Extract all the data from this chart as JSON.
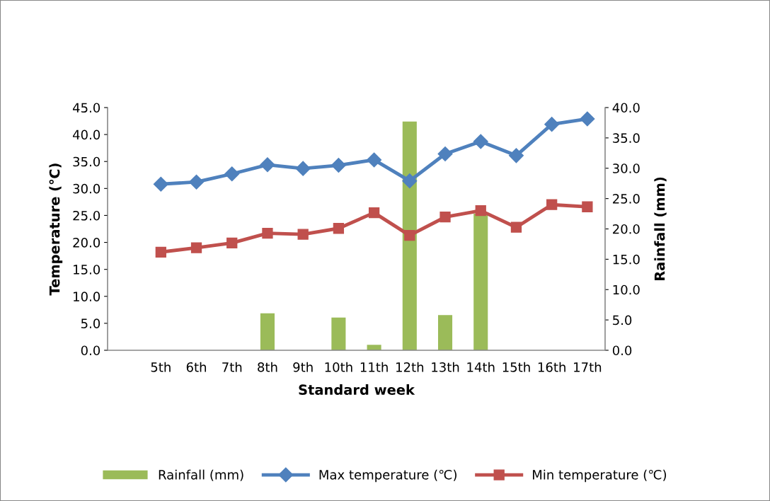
{
  "chart_data": {
    "type": "line",
    "xlabel": "Standard week",
    "ylabel": "Temperature (℃)",
    "y2label": "Rainfall (mm)",
    "categories": [
      "5th",
      "6th",
      "7th",
      "8th",
      "9th",
      "10th",
      "11th",
      "12th",
      "13th",
      "14th",
      "15th",
      "16th",
      "17th"
    ],
    "series": [
      {
        "name": "Rainfall (mm)",
        "type": "bar",
        "axis": "y2",
        "color": "#9bbb59",
        "values": [
          0,
          0,
          0,
          6.1,
          0,
          5.4,
          0.9,
          37.7,
          5.8,
          22.5,
          0,
          0,
          0
        ]
      },
      {
        "name": "Max temperature (℃)",
        "marker": "diamond",
        "color": "#4f81bd",
        "values": [
          30.8,
          31.2,
          32.7,
          34.4,
          33.7,
          34.3,
          35.3,
          31.4,
          36.4,
          38.7,
          36.1,
          41.9,
          42.9
        ]
      },
      {
        "name": "Min temperature (℃)",
        "marker": "square",
        "color": "#c0504d",
        "values": [
          18.2,
          19.0,
          19.9,
          21.7,
          21.5,
          22.6,
          25.5,
          21.3,
          24.7,
          25.9,
          22.8,
          27.0,
          26.6
        ]
      }
    ],
    "ylim": [
      0,
      45
    ],
    "yticks": [
      {
        "value": 0,
        "label": "0.0"
      },
      {
        "value": 5,
        "label": "5.0"
      },
      {
        "value": 10,
        "label": "10.0"
      },
      {
        "value": 15,
        "label": "15.0"
      },
      {
        "value": 20,
        "label": "20.0"
      },
      {
        "value": 25,
        "label": "25.0"
      },
      {
        "value": 30,
        "label": "30.0"
      },
      {
        "value": 35,
        "label": "35.0"
      },
      {
        "value": 40,
        "label": "40.0"
      },
      {
        "value": 45,
        "label": "45.0"
      }
    ],
    "y2lim": [
      0,
      40
    ],
    "y2ticks": [
      {
        "value": 0,
        "label": "0.0"
      },
      {
        "value": 5,
        "label": "5.0"
      },
      {
        "value": 10,
        "label": "10.0"
      },
      {
        "value": 15,
        "label": "15.0"
      },
      {
        "value": 20,
        "label": "20.0"
      },
      {
        "value": 25,
        "label": "25.0"
      },
      {
        "value": 30,
        "label": "30.0"
      },
      {
        "value": 35,
        "label": "35.0"
      },
      {
        "value": 40,
        "label": "40.0"
      }
    ],
    "legend": "bottom",
    "grid": false
  }
}
